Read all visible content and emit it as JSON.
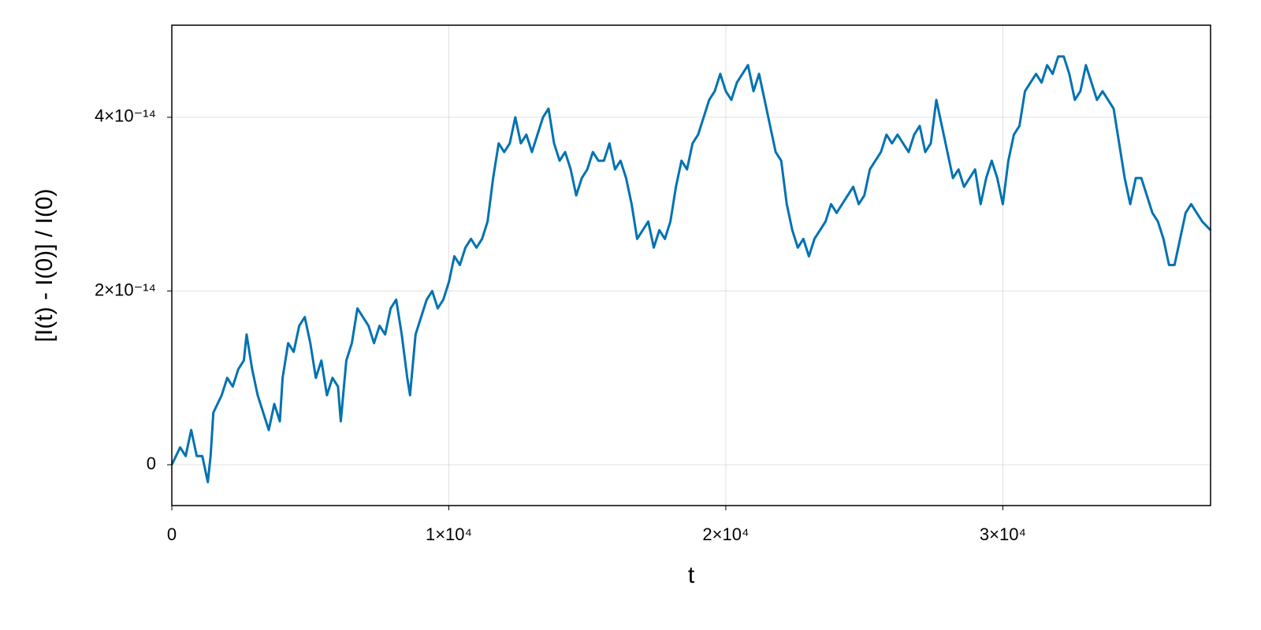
{
  "chart_data": {
    "type": "line",
    "xlabel": "t",
    "ylabel": "[I(t) - I(0)] / I(0)",
    "color": "#0072b2",
    "grid": true,
    "xlim": [
      0,
      37500
    ],
    "ylim": [
      -4.7e-15,
      5.06e-14
    ],
    "xticks": [
      0,
      {
        "value": 10000,
        "label": "1×10⁴"
      },
      {
        "value": 20000,
        "label": "2×10⁴"
      },
      {
        "value": 30000,
        "label": "3×10⁴"
      }
    ],
    "yticks": [
      0,
      {
        "value": 2e-14,
        "label": "2×10⁻¹⁴"
      },
      {
        "value": 4e-14,
        "label": "4×10⁻¹⁴"
      }
    ],
    "x": [
      0,
      300,
      500,
      700,
      900,
      1100,
      1300,
      1400,
      1500,
      1800,
      2000,
      2200,
      2400,
      2600,
      2700,
      2900,
      3100,
      3300,
      3500,
      3700,
      3900,
      4000,
      4200,
      4400,
      4600,
      4800,
      5000,
      5200,
      5400,
      5600,
      5800,
      6000,
      6100,
      6300,
      6500,
      6700,
      6900,
      7100,
      7300,
      7500,
      7700,
      7900,
      8100,
      8300,
      8500,
      8600,
      8800,
      9000,
      9200,
      9400,
      9600,
      9800,
      10000,
      10200,
      10400,
      10600,
      10800,
      11000,
      11200,
      11400,
      11600,
      11800,
      12000,
      12200,
      12400,
      12600,
      12800,
      13000,
      13200,
      13400,
      13600,
      13800,
      14000,
      14200,
      14400,
      14600,
      14800,
      15000,
      15200,
      15400,
      15600,
      15800,
      16000,
      16200,
      16400,
      16600,
      16800,
      17000,
      17200,
      17400,
      17600,
      17800,
      18000,
      18200,
      18400,
      18600,
      18800,
      19000,
      19200,
      19400,
      19600,
      19800,
      20000,
      20200,
      20400,
      20600,
      20800,
      21000,
      21200,
      21400,
      21600,
      21800,
      22000,
      22200,
      22400,
      22600,
      22800,
      23000,
      23200,
      23400,
      23600,
      23800,
      24000,
      24200,
      24400,
      24600,
      24800,
      25000,
      25200,
      25400,
      25600,
      25800,
      26000,
      26200,
      26400,
      26600,
      26800,
      27000,
      27200,
      27400,
      27600,
      27800,
      28000,
      28200,
      28400,
      28600,
      28800,
      29000,
      29200,
      29400,
      29600,
      29800,
      30000,
      30200,
      30400,
      30600,
      30800,
      31000,
      31200,
      31400,
      31600,
      31800,
      32000,
      32200,
      32400,
      32600,
      32800,
      33000,
      33200,
      33400,
      33600,
      33800,
      34000,
      34200,
      34400,
      34600,
      34800,
      35000,
      35200,
      35400,
      35600,
      35800,
      36000,
      36200,
      36400,
      36600,
      36800,
      37000,
      37200,
      37500
    ],
    "values": [
      0,
      2e-15,
      1e-15,
      4e-15,
      1e-15,
      1e-15,
      -2e-15,
      1e-15,
      6e-15,
      8e-15,
      1e-14,
      9e-15,
      1.1e-14,
      1.2e-14,
      1.5e-14,
      1.1e-14,
      8e-15,
      6e-15,
      4e-15,
      7e-15,
      5e-15,
      1e-14,
      1.4e-14,
      1.3e-14,
      1.6e-14,
      1.7e-14,
      1.4e-14,
      1e-14,
      1.2e-14,
      8e-15,
      1e-14,
      9e-15,
      5e-15,
      1.2e-14,
      1.4e-14,
      1.8e-14,
      1.7e-14,
      1.6e-14,
      1.4e-14,
      1.6e-14,
      1.5e-14,
      1.8e-14,
      1.9e-14,
      1.5e-14,
      1e-14,
      8e-15,
      1.5e-14,
      1.7e-14,
      1.9e-14,
      2e-14,
      1.8e-14,
      1.9e-14,
      2.1e-14,
      2.4e-14,
      2.3e-14,
      2.5e-14,
      2.6e-14,
      2.5e-14,
      2.6e-14,
      2.8e-14,
      3.3e-14,
      3.7e-14,
      3.6e-14,
      3.7e-14,
      4e-14,
      3.7e-14,
      3.8e-14,
      3.6e-14,
      3.8e-14,
      4e-14,
      4.1e-14,
      3.7e-14,
      3.5e-14,
      3.6e-14,
      3.4e-14,
      3.1e-14,
      3.3e-14,
      3.4e-14,
      3.6e-14,
      3.5e-14,
      3.5e-14,
      3.7e-14,
      3.4e-14,
      3.5e-14,
      3.3e-14,
      3e-14,
      2.6e-14,
      2.7e-14,
      2.8e-14,
      2.5e-14,
      2.7e-14,
      2.6e-14,
      2.8e-14,
      3.2e-14,
      3.5e-14,
      3.4e-14,
      3.7e-14,
      3.8e-14,
      4e-14,
      4.2e-14,
      4.3e-14,
      4.5e-14,
      4.3e-14,
      4.2e-14,
      4.4e-14,
      4.5e-14,
      4.6e-14,
      4.3e-14,
      4.5e-14,
      4.2e-14,
      3.9e-14,
      3.6e-14,
      3.5e-14,
      3e-14,
      2.7e-14,
      2.5e-14,
      2.6e-14,
      2.4e-14,
      2.6e-14,
      2.7e-14,
      2.8e-14,
      3e-14,
      2.9e-14,
      3e-14,
      3.1e-14,
      3.2e-14,
      3e-14,
      3.1e-14,
      3.4e-14,
      3.5e-14,
      3.6e-14,
      3.8e-14,
      3.7e-14,
      3.8e-14,
      3.7e-14,
      3.6e-14,
      3.8e-14,
      3.9e-14,
      3.6e-14,
      3.7e-14,
      4.2e-14,
      3.9e-14,
      3.6e-14,
      3.3e-14,
      3.4e-14,
      3.2e-14,
      3.3e-14,
      3.4e-14,
      3e-14,
      3.3e-14,
      3.5e-14,
      3.3e-14,
      3e-14,
      3.5e-14,
      3.8e-14,
      3.9e-14,
      4.3e-14,
      4.4e-14,
      4.5e-14,
      4.4e-14,
      4.6e-14,
      4.5e-14,
      4.7e-14,
      4.7e-14,
      4.5e-14,
      4.2e-14,
      4.3e-14,
      4.6e-14,
      4.4e-14,
      4.2e-14,
      4.3e-14,
      4.2e-14,
      4.1e-14,
      3.7e-14,
      3.3e-14,
      3e-14,
      3.3e-14,
      3.3e-14,
      3.1e-14,
      2.9e-14,
      2.8e-14,
      2.6e-14,
      2.3e-14,
      2.3e-14,
      2.6e-14,
      2.9e-14,
      3e-14,
      2.9e-14,
      2.8e-14,
      2.7e-14
    ]
  }
}
